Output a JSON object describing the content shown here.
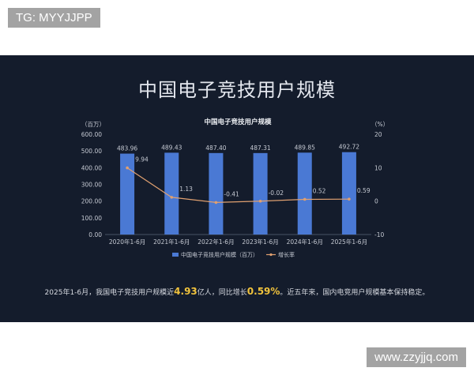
{
  "top_tag": "TG: MYYJJPP",
  "main_title": "中国电子竞技用户规模",
  "watermark": "www.zzyjjq.com",
  "summary": {
    "part1": "2025年1-6月，我国电子竞技用户规模近",
    "value1": "4.93",
    "part2": "亿人，同比增长",
    "value2": "0.59%",
    "part3": "。近五年来，国内电竞用户规模基本保持稳定。"
  },
  "colors": {
    "background": "#141c2c",
    "bar": "#4a79d4",
    "line": "#e0a070",
    "highlight": "#f0c23c"
  },
  "chart_data": {
    "type": "bar",
    "title": "中国电子竞技用户规模",
    "categories": [
      "2020年1-6月",
      "2021年1-6月",
      "2022年1-6月",
      "2023年1-6月",
      "2024年1-6月",
      "2025年1-6月"
    ],
    "y_left": {
      "label": "（百万）",
      "range": [
        0,
        600
      ],
      "ticks": [
        "0.00",
        "100.00",
        "200.00",
        "300.00",
        "400.00",
        "500.00",
        "600.00"
      ]
    },
    "y_right": {
      "label": "（%）",
      "range": [
        -10,
        20
      ],
      "ticks": [
        "-10",
        "0",
        "10",
        "20"
      ]
    },
    "series": [
      {
        "name": "中国电子竞技用户规模（百万）",
        "type": "bar",
        "axis": "left",
        "values": [
          483.96,
          489.43,
          487.4,
          487.31,
          489.85,
          492.72
        ],
        "labels": [
          "483.96",
          "489.43",
          "487.40",
          "487.31",
          "489.85",
          "492.72"
        ]
      },
      {
        "name": "增长率",
        "type": "line",
        "axis": "right",
        "values": [
          9.94,
          1.13,
          -0.41,
          -0.02,
          0.52,
          0.59
        ],
        "labels": [
          "9.94",
          "1.13",
          "-0.41",
          "-0.02",
          "0.52",
          "0.59"
        ]
      }
    ],
    "legend": "bottom-center",
    "grid": false
  }
}
